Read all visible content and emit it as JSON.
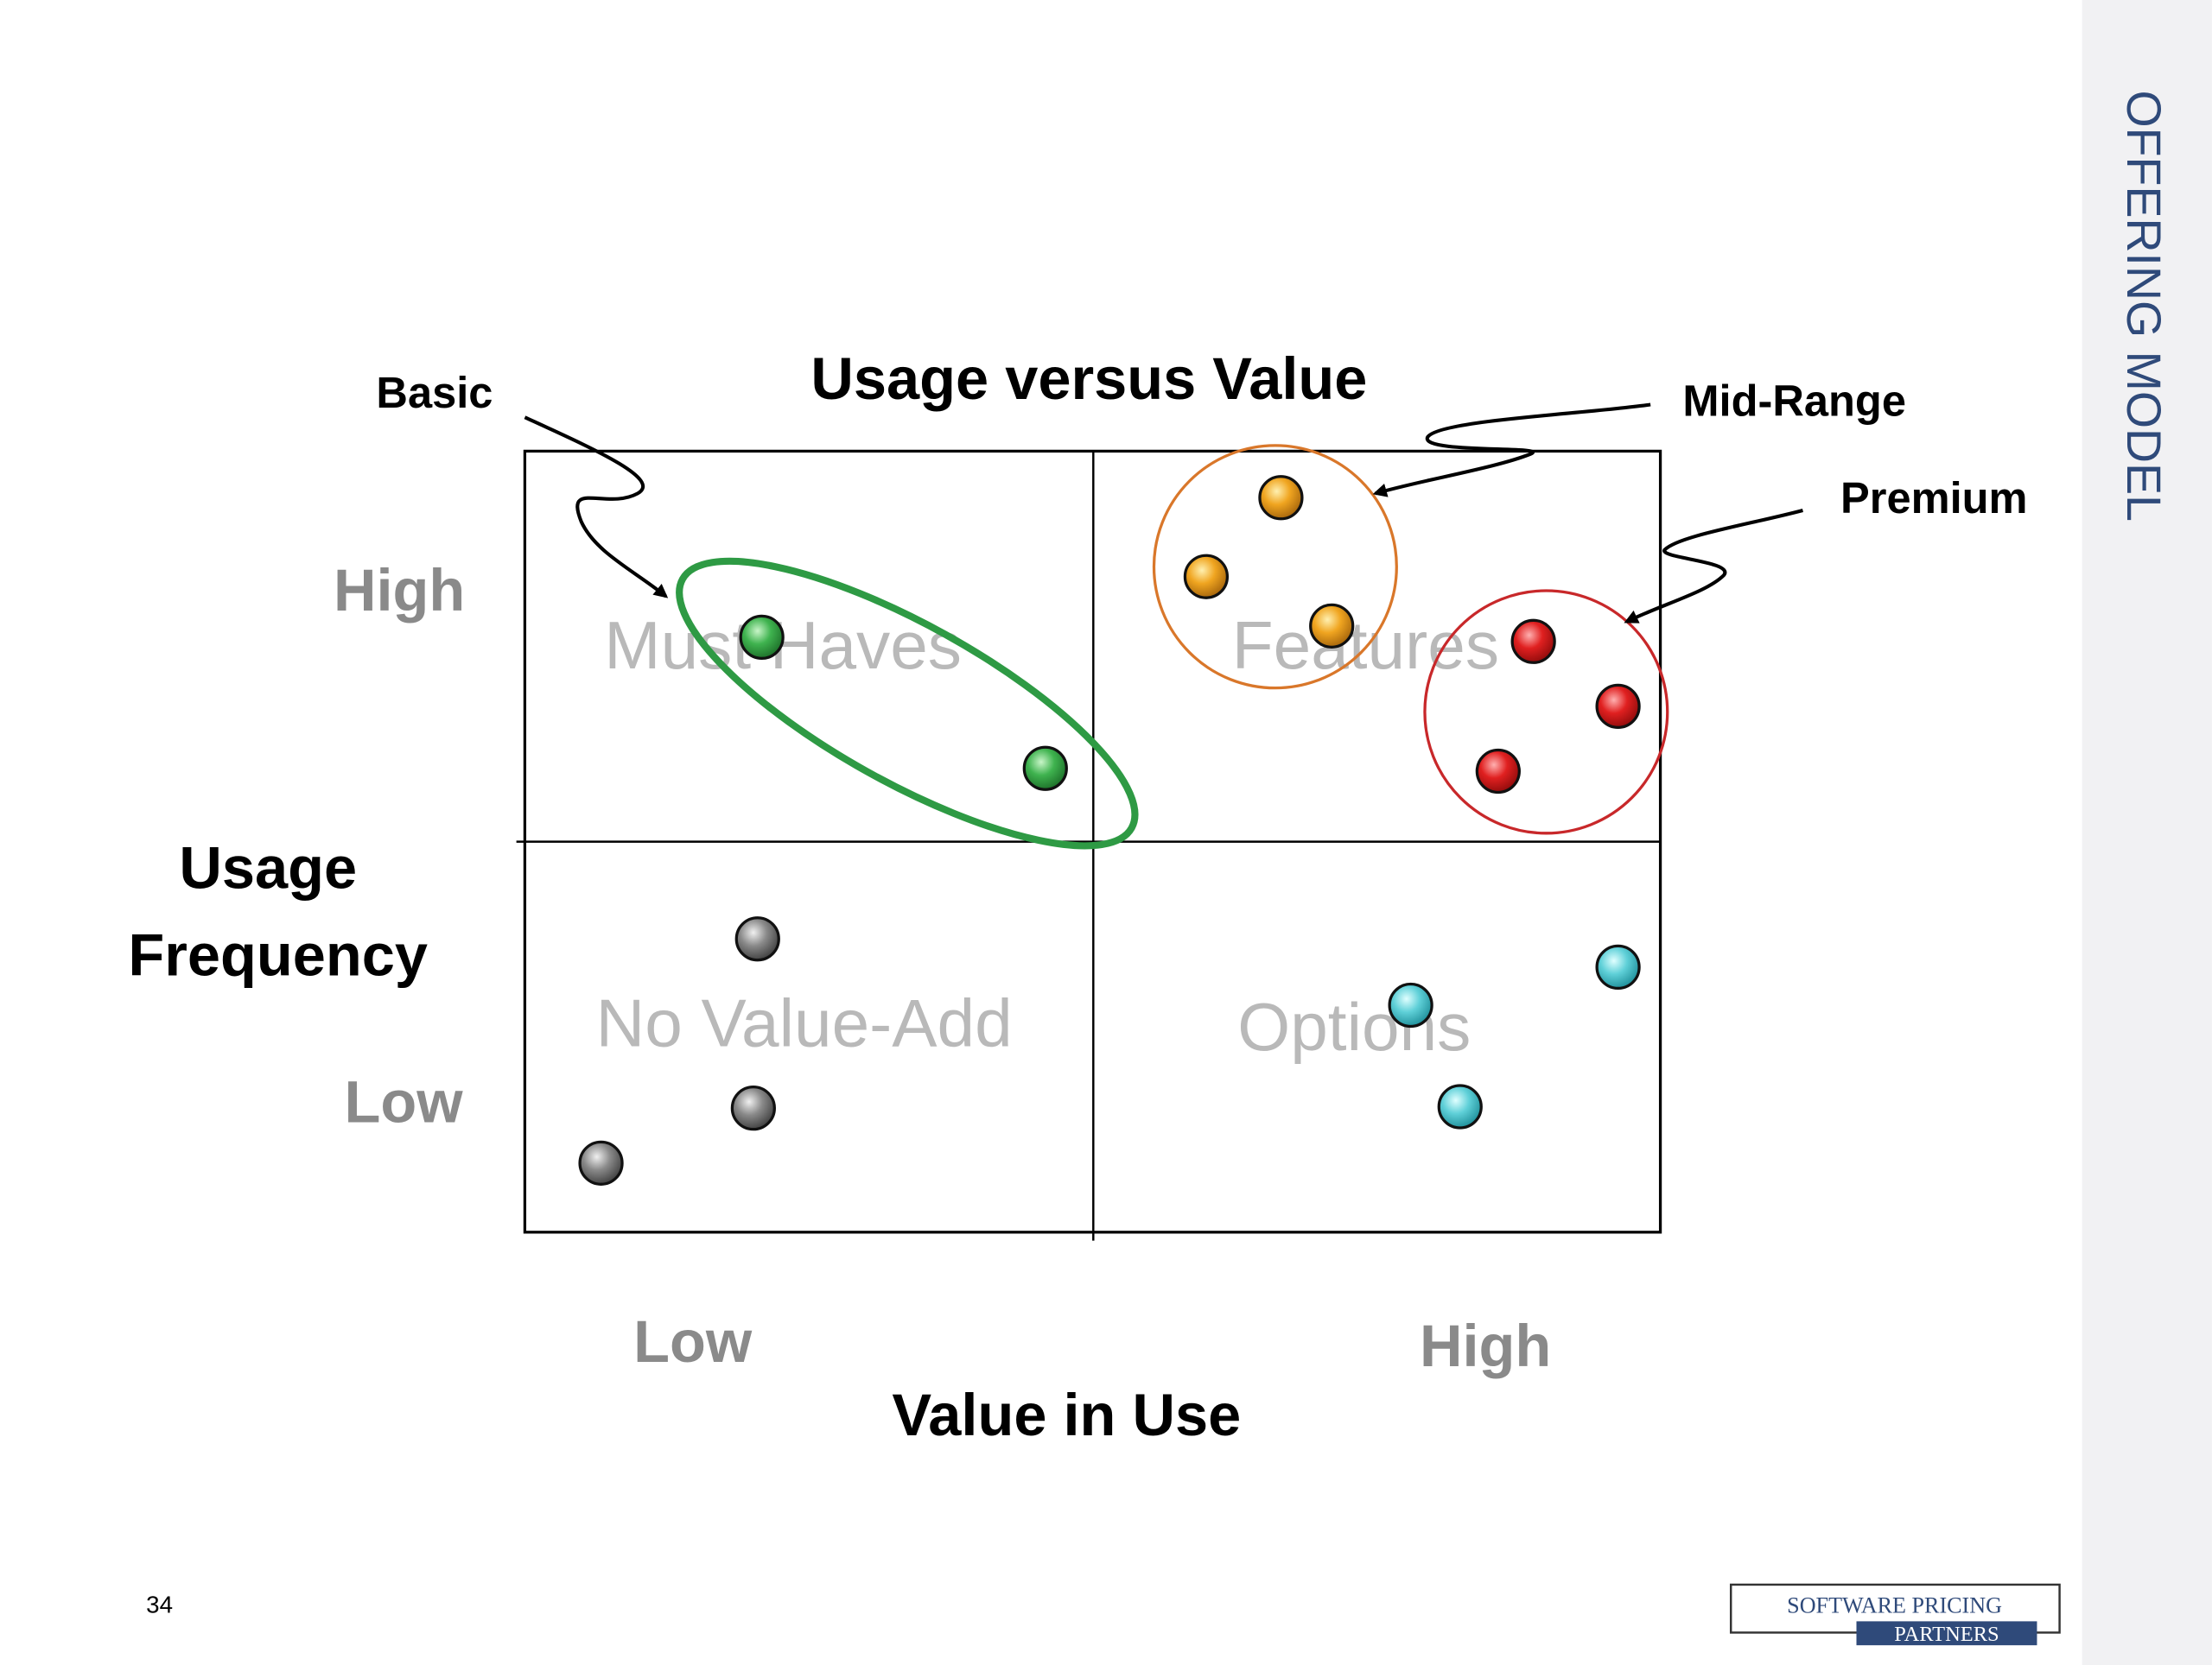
{
  "header": {
    "side_title": "Offering Model"
  },
  "diagram": {
    "title": "Usage versus Value",
    "y_axis": {
      "lines": [
        "Usage",
        "Frequency"
      ],
      "ticks": [
        "High",
        "Low"
      ]
    },
    "x_axis": {
      "label": "Value in Use",
      "ticks": [
        "Low",
        "High"
      ]
    },
    "quadrants": [
      "Must Haves",
      "Features",
      "No Value-Add",
      "Options"
    ],
    "callouts": [
      "Basic",
      "Mid-Range",
      "Premium"
    ]
  },
  "footer": {
    "page_number": "34",
    "logo": [
      "SOFTWARE PRICING",
      "PARTNERS"
    ]
  }
}
